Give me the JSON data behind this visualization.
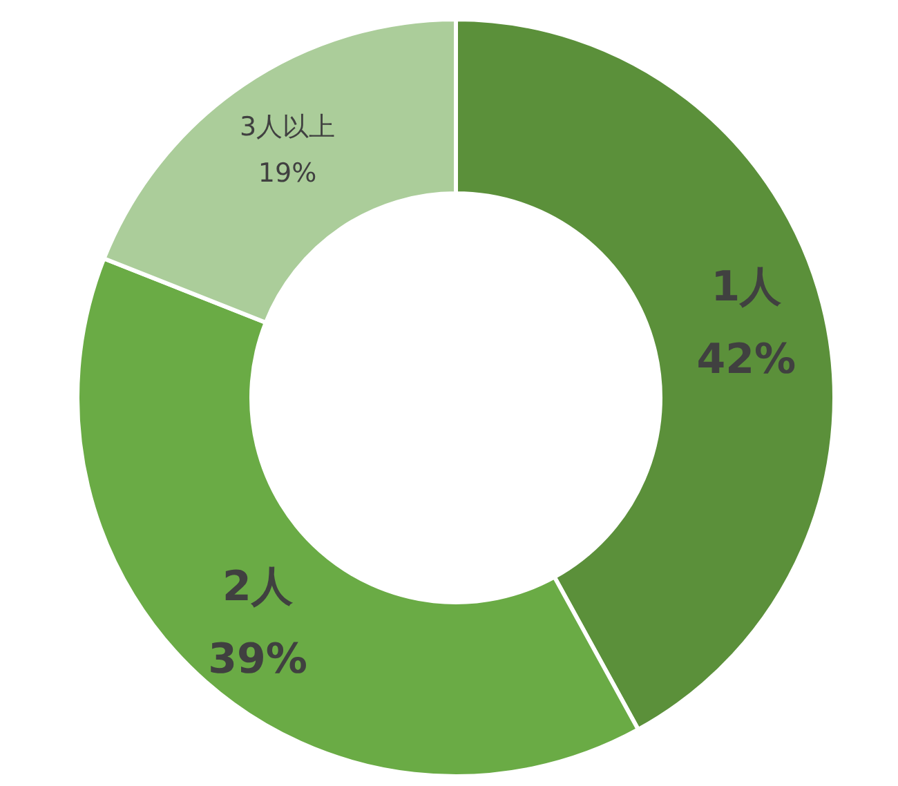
{
  "chart_data": {
    "type": "donut",
    "categories": [
      "1人",
      "2人",
      "3人以上"
    ],
    "values": [
      42,
      39,
      19
    ],
    "colors": [
      "#5b903a",
      "#6aab45",
      "#abcd9a"
    ],
    "value_labels": [
      "42%",
      "39%",
      "19%"
    ],
    "legend": false
  }
}
